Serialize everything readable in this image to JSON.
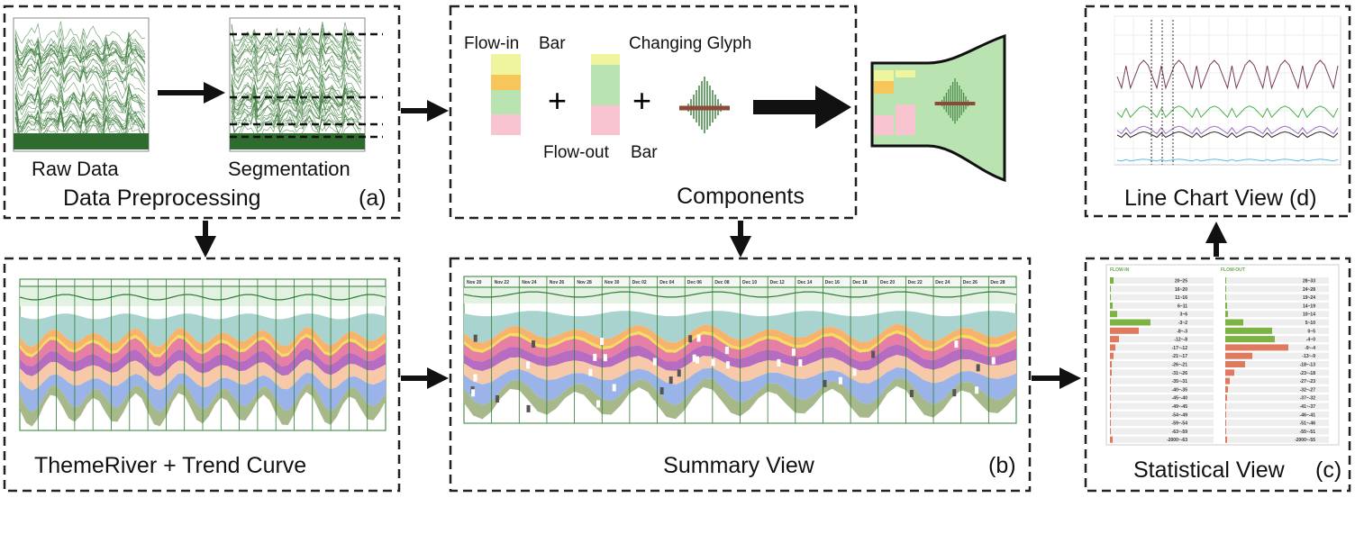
{
  "panels": {
    "preprocessing": {
      "raw_label": "Raw Data",
      "seg_label": "Segmentation",
      "title": "Data Preprocessing",
      "tag": "(a)"
    },
    "components": {
      "flow_in": "Flow-in",
      "flow_in_bar": "Bar",
      "glyph": "Changing Glyph",
      "flow_out": "Flow-out",
      "flow_out_bar": "Bar",
      "title": "Components"
    },
    "line_chart": {
      "title": "Line Chart View (d)"
    },
    "themeriver": {
      "title": "ThemeRiver + Trend Curve"
    },
    "summary": {
      "title": "Summary View",
      "tag": "(b)",
      "dates": [
        "Nov 20",
        "Nov 22",
        "Nov 24",
        "Nov 26",
        "Nov 28",
        "Nov 30",
        "Dec 02",
        "Dec 04",
        "Dec 06",
        "Dec 08",
        "Dec 10",
        "Dec 12",
        "Dec 14",
        "Dec 16",
        "Dec 18",
        "Dec 20",
        "Dec 22",
        "Dec 24",
        "Dec 26",
        "Dec 28"
      ]
    },
    "statistical": {
      "title": "Statistical View",
      "tag": "(c)",
      "flow_in": "FLOW-IN",
      "flow_out": "FLOW-OUT",
      "in_bins": [
        "20~25",
        "16~20",
        "11~16",
        "6~11",
        "3~6",
        "-3~2",
        "-8~-3",
        "-12~-8",
        "-17~-12",
        "-21~-17",
        "-26~-21",
        "-31~-26",
        "-35~-31",
        "-40~-35",
        "-45~-40",
        "-49~-45",
        "-54~-49",
        "-59~-54",
        "-63~-59",
        "-2000~-63"
      ],
      "out_bins": [
        "28~33",
        "24~28",
        "19~24",
        "14~19",
        "10~14",
        "5~10",
        "0~5",
        "-4~0",
        "-9~-4",
        "-13~-9",
        "-18~-13",
        "-23~-18",
        "-27~-23",
        "-32~-27",
        "-37~-32",
        "-41~-37",
        "-46~-41",
        "-51~-46",
        "-55~-51",
        "-2000~-55"
      ]
    }
  }
}
